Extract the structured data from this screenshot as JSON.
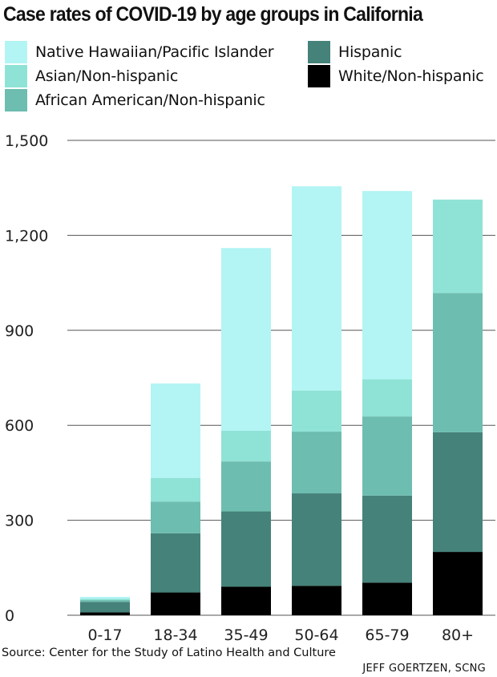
{
  "title": "Case rates of COVID-19 by age groups in California",
  "source": "Source: Center for the Study of Latino Health and Culture",
  "credit": "JEFF GOERTZEN, SCNG",
  "colors": {
    "native_hawaiian": "#b3f4f4",
    "asian": "#8fe3d6",
    "african_american": "#6dbdb0",
    "hispanic": "#458279",
    "white": "#000000",
    "grid": "#555555"
  },
  "legend": [
    {
      "label": "Native Hawaiian/Pacific Islander",
      "color": "#b3f4f4"
    },
    {
      "label": "Asian/Non-hispanic",
      "color": "#8fe3d6"
    },
    {
      "label": "African American/Non-hispanic",
      "color": "#6dbdb0"
    },
    {
      "label": "Hispanic",
      "color": "#458279"
    },
    {
      "label": "White/Non-hispanic",
      "color": "#000000"
    }
  ],
  "chart_data": {
    "type": "bar",
    "stacked": true,
    "title": "Case rates of COVID-19 by age groups in California",
    "xlabel": "",
    "ylabel": "",
    "ylim": [
      0,
      1500
    ],
    "yticks": [
      0,
      300,
      600,
      900,
      1200,
      1500
    ],
    "ytick_labels": [
      "0",
      "300",
      "600",
      "900",
      "1,200",
      "1,500"
    ],
    "categories": [
      "0-17",
      "18-34",
      "35-49",
      "50-64",
      "65-79",
      "80+"
    ],
    "grid": true,
    "legend_position": "top",
    "series": [
      {
        "name": "White/Non-hispanic",
        "color": "#000000",
        "values": [
          9,
          72,
          90,
          93,
          103,
          200
        ]
      },
      {
        "name": "Hispanic",
        "color": "#458279",
        "values": [
          33,
          187,
          238,
          292,
          275,
          378
        ]
      },
      {
        "name": "African American/Non-hispanic",
        "color": "#6dbdb0",
        "values": [
          6,
          100,
          158,
          195,
          250,
          440
        ]
      },
      {
        "name": "Asian/Non-hispanic",
        "color": "#8fe3d6",
        "values": [
          4,
          75,
          97,
          130,
          117,
          295
        ]
      },
      {
        "name": "Native Hawaiian/Pacific Islander",
        "color": "#b3f4f4",
        "values": [
          6,
          298,
          577,
          645,
          595,
          0
        ]
      }
    ]
  }
}
